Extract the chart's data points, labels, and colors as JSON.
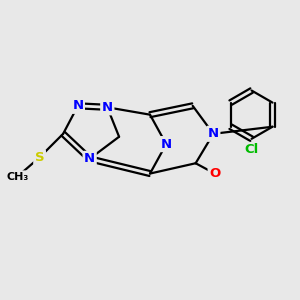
{
  "background_color": "#e8e8e8",
  "bond_color": "#000000",
  "bond_width": 1.6,
  "atom_colors": {
    "N": "#0000ff",
    "O": "#ff0000",
    "S": "#cccc00",
    "Cl": "#00bb00",
    "C": "#000000"
  },
  "fig_size": [
    3.0,
    3.0
  ],
  "dpi": 100
}
